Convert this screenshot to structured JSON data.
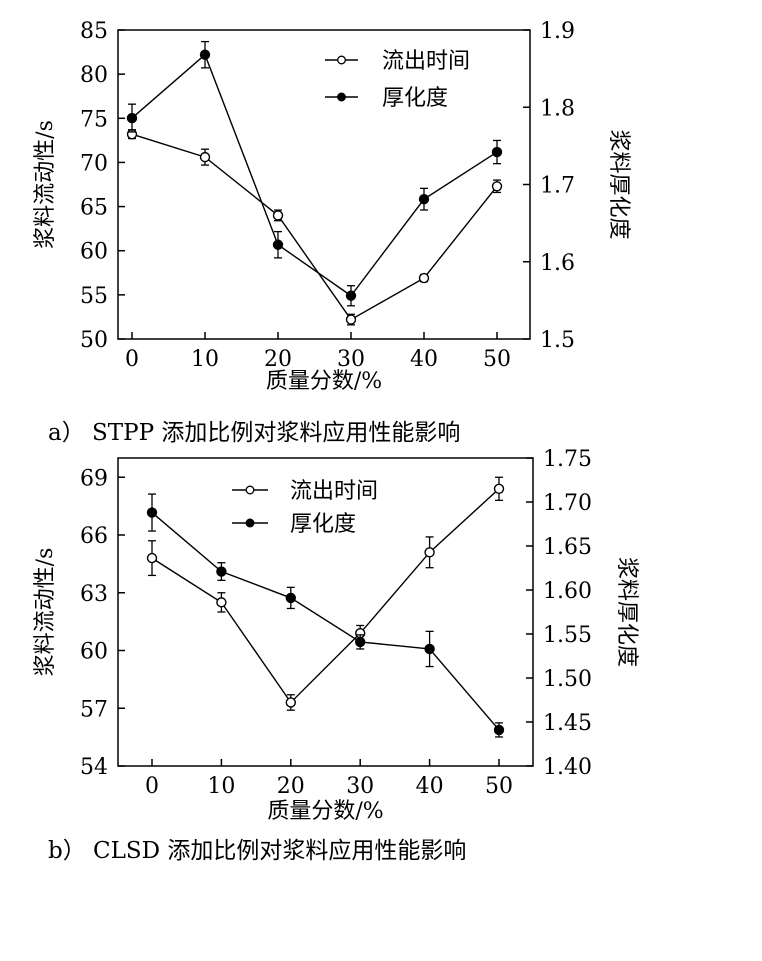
{
  "chart_data": [
    {
      "type": "line",
      "caption": "a） STPP 添加比例对浆料应用性能影响",
      "xlabel": "质量分数/%",
      "ylabel": "浆料流动性/s",
      "y2label": "浆料厚化度",
      "x": [
        0,
        10,
        20,
        30,
        40,
        50
      ],
      "xticks": [
        0,
        10,
        20,
        30,
        40,
        50
      ],
      "ylim": [
        50,
        85
      ],
      "yticks": [
        50,
        55,
        60,
        65,
        70,
        75,
        80,
        85
      ],
      "y2lim": [
        1.5,
        1.9
      ],
      "y2ticks": [
        "1.5",
        "1.6",
        "1.7",
        "1.8",
        "1.9"
      ],
      "legend_position": "top-right",
      "series": [
        {
          "name": "流出时间",
          "axis": "left",
          "marker": "open-circle",
          "values": [
            73.2,
            70.6,
            64.0,
            52.2,
            56.9,
            67.3
          ],
          "errors": [
            0.5,
            0.9,
            0.6,
            0.6,
            0.4,
            0.7
          ]
        },
        {
          "name": "厚化度",
          "axis": "right",
          "marker": "filled-circle",
          "values": [
            1.786,
            1.868,
            1.622,
            1.556,
            1.681,
            1.742
          ],
          "errors": [
            0.018,
            0.017,
            0.017,
            0.013,
            0.014,
            0.015
          ]
        }
      ]
    },
    {
      "type": "line",
      "caption": "b） CLSD 添加比例对浆料应用性能影响",
      "xlabel": "质量分数/%",
      "ylabel": "浆料流动性/s",
      "y2label": "浆料厚化度",
      "x": [
        0,
        10,
        20,
        30,
        40,
        50
      ],
      "xticks": [
        0,
        10,
        20,
        30,
        40,
        50
      ],
      "ylim": [
        54,
        70
      ],
      "yticks": [
        54,
        57,
        60,
        63,
        66,
        69
      ],
      "y2lim": [
        1.4,
        1.75
      ],
      "y2ticks": [
        "1.40",
        "1.45",
        "1.50",
        "1.55",
        "1.60",
        "1.65",
        "1.70",
        "1.75"
      ],
      "legend_position": "top-center",
      "series": [
        {
          "name": "流出时间",
          "axis": "left",
          "marker": "open-circle",
          "values": [
            64.8,
            62.5,
            57.3,
            60.9,
            65.1,
            68.4
          ],
          "errors": [
            0.9,
            0.5,
            0.4,
            0.4,
            0.8,
            0.6
          ]
        },
        {
          "name": "厚化度",
          "axis": "right",
          "marker": "filled-circle",
          "values": [
            1.688,
            1.621,
            1.591,
            1.541,
            1.533,
            1.441
          ],
          "errors": [
            0.021,
            0.01,
            0.012,
            0.008,
            0.02,
            0.008
          ]
        }
      ]
    }
  ]
}
